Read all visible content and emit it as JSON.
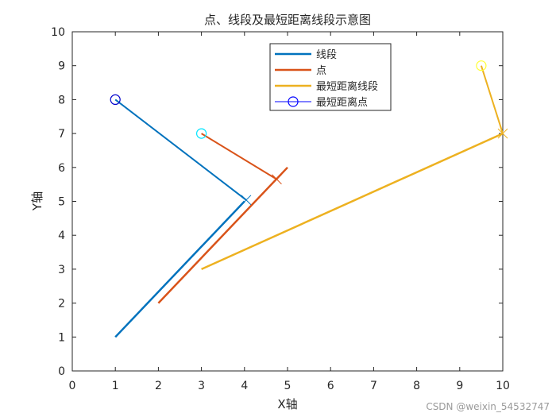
{
  "chart_data": {
    "type": "line",
    "title": "点、线段及最短距离线段示意图",
    "xlabel": "X轴",
    "ylabel": "Y轴",
    "xlim": [
      0,
      10
    ],
    "ylim": [
      0,
      10
    ],
    "xticks": [
      0,
      1,
      2,
      3,
      4,
      5,
      6,
      7,
      8,
      9,
      10
    ],
    "yticks": [
      0,
      1,
      2,
      3,
      4,
      5,
      6,
      7,
      8,
      9,
      10
    ],
    "grid": false,
    "legend_position": "top-right",
    "legend": [
      {
        "label": "线段",
        "kind": "line",
        "color": "#0072BD"
      },
      {
        "label": "点",
        "kind": "line",
        "color": "#D95319"
      },
      {
        "label": "最短距离线段",
        "kind": "line",
        "color": "#EDB120"
      },
      {
        "label": "最短距离点",
        "kind": "marker",
        "marker": "circle",
        "color": "#0000FF"
      }
    ],
    "segments": [
      {
        "color": "#0072BD",
        "x": [
          1,
          4
        ],
        "y": [
          1,
          5
        ]
      },
      {
        "color": "#D95319",
        "x": [
          2,
          5
        ],
        "y": [
          2,
          6
        ]
      },
      {
        "color": "#EDB120",
        "x": [
          3,
          10
        ],
        "y": [
          3,
          7
        ]
      }
    ],
    "connections": [
      {
        "color": "#0072BD",
        "marker_color": "#0000CC",
        "point": [
          1,
          8
        ],
        "closest": [
          4.04,
          5.04
        ]
      },
      {
        "color": "#D95319",
        "marker_color": "#00E5FF",
        "point": [
          3,
          7
        ],
        "closest": [
          4.75,
          5.65
        ]
      },
      {
        "color": "#EDB120",
        "marker_color": "#FFFF33",
        "point": [
          9.5,
          9
        ],
        "closest": [
          10,
          7
        ]
      }
    ]
  },
  "watermark": "CSDN @weixin_54532747"
}
